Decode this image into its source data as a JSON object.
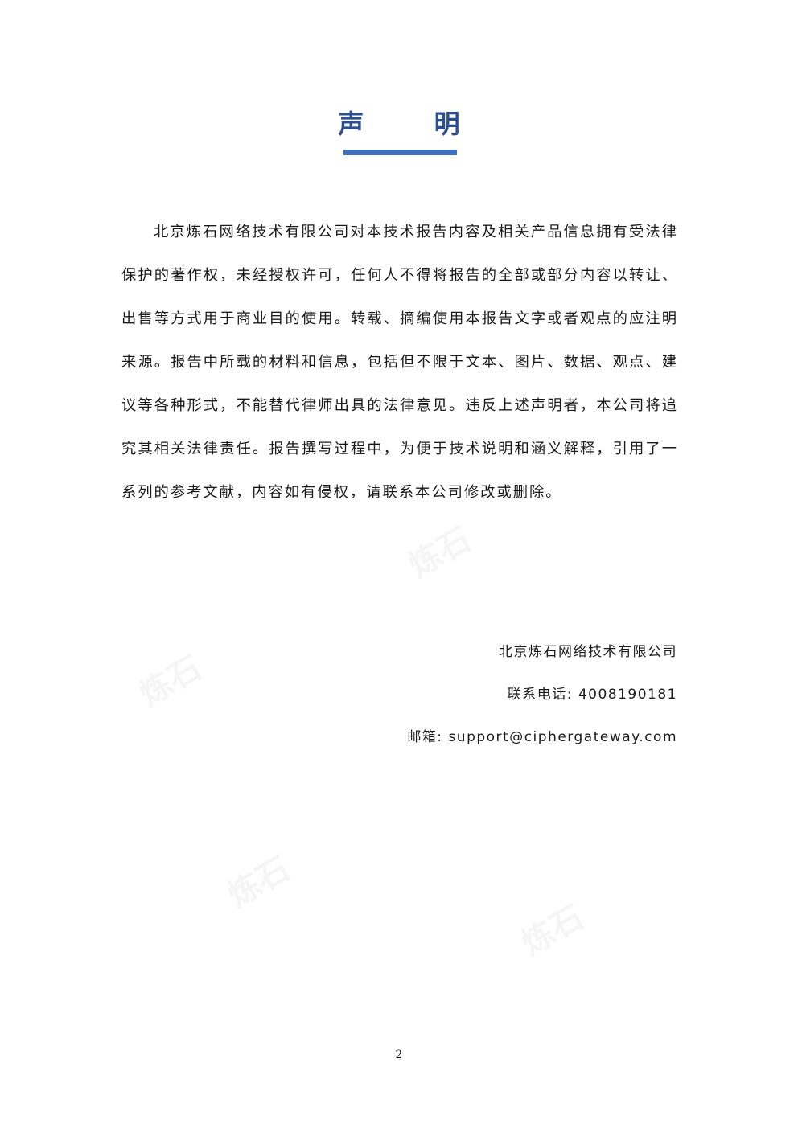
{
  "document": {
    "title": "声 明",
    "body": "北京炼石网络技术有限公司对本技术报告内容及相关产品信息拥有受法律保护的著作权，未经授权许可，任何人不得将报告的全部或部分内容以转让、出售等方式用于商业目的使用。转载、摘编使用本报告文字或者观点的应注明来源。报告中所载的材料和信息，包括但不限于文本、图片、数据、观点、建议等各种形式，不能替代律师出具的法律意见。违反上述声明者，本公司将追究其相关法律责任。报告撰写过程中，为便于技术说明和涵义解释，引用了一系列的参考文献，内容如有侵权，请联系本公司修改或删除。",
    "signature": {
      "company": "北京炼石网络技术有限公司",
      "phone": "联系电话: 4008190181",
      "email": "邮箱: support@ciphergateway.com"
    },
    "page_number": "2"
  },
  "watermark": {
    "text": "炼石",
    "color": "#000000"
  },
  "colors": {
    "title": "#2e4f8f",
    "rule": "#3f6fc0"
  }
}
